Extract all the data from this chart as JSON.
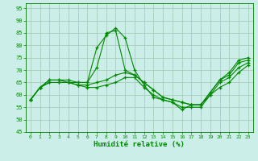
{
  "title": "",
  "xlabel": "Humidité relative (%)",
  "ylabel": "",
  "background_color": "#cceee8",
  "grid_color": "#aaccbb",
  "line_color": "#008800",
  "ylim": [
    45,
    97
  ],
  "xlim": [
    -0.5,
    23.5
  ],
  "yticks": [
    45,
    50,
    55,
    60,
    65,
    70,
    75,
    80,
    85,
    90,
    95
  ],
  "xticks": [
    0,
    1,
    2,
    3,
    4,
    5,
    6,
    7,
    8,
    9,
    10,
    11,
    12,
    13,
    14,
    15,
    16,
    17,
    18,
    19,
    20,
    21,
    22,
    23
  ],
  "series": [
    [
      58,
      63,
      66,
      66,
      66,
      65,
      65,
      79,
      84,
      87,
      83,
      70,
      64,
      59,
      58,
      57,
      54,
      56,
      56,
      61,
      66,
      69,
      74,
      75
    ],
    [
      58,
      63,
      66,
      66,
      65,
      65,
      65,
      71,
      85,
      86,
      70,
      68,
      65,
      62,
      59,
      58,
      57,
      56,
      56,
      61,
      66,
      68,
      73,
      74
    ],
    [
      58,
      63,
      65,
      65,
      65,
      64,
      64,
      65,
      66,
      68,
      69,
      68,
      65,
      62,
      59,
      58,
      57,
      56,
      56,
      60,
      65,
      67,
      71,
      73
    ],
    [
      58,
      63,
      65,
      65,
      65,
      64,
      63,
      63,
      64,
      65,
      67,
      67,
      63,
      60,
      58,
      57,
      55,
      55,
      55,
      60,
      63,
      65,
      69,
      72
    ]
  ]
}
